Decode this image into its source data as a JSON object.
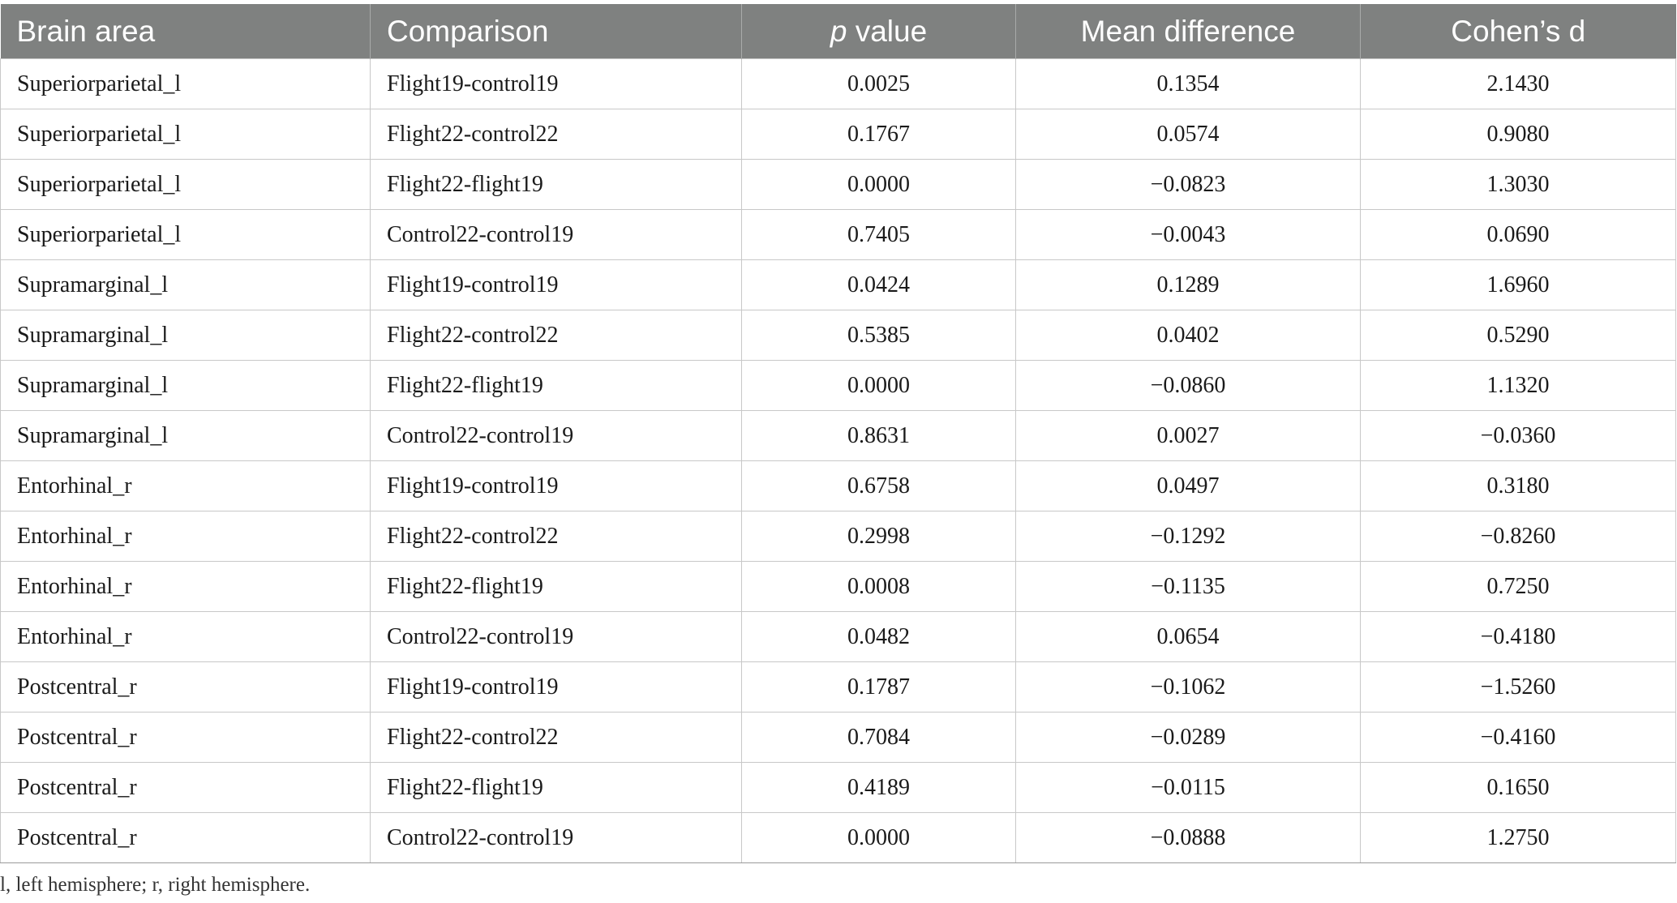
{
  "table": {
    "headers": {
      "brain_area": "Brain area",
      "comparison": "Comparison",
      "p_value_italic": "p",
      "p_value_rest": " value",
      "mean_difference": "Mean difference",
      "cohens_d": "Cohen’s d"
    },
    "rows": [
      {
        "brain_area": "Superiorparietal_l",
        "comparison": "Flight19-control19",
        "p_value": "0.0025",
        "mean_difference": "0.1354",
        "cohens_d": "2.1430"
      },
      {
        "brain_area": "Superiorparietal_l",
        "comparison": "Flight22-control22",
        "p_value": "0.1767",
        "mean_difference": "0.0574",
        "cohens_d": "0.9080"
      },
      {
        "brain_area": "Superiorparietal_l",
        "comparison": "Flight22-flight19",
        "p_value": "0.0000",
        "mean_difference": "−0.0823",
        "cohens_d": "1.3030"
      },
      {
        "brain_area": "Superiorparietal_l",
        "comparison": "Control22-control19",
        "p_value": "0.7405",
        "mean_difference": "−0.0043",
        "cohens_d": "0.0690"
      },
      {
        "brain_area": "Supramarginal_l",
        "comparison": "Flight19-control19",
        "p_value": "0.0424",
        "mean_difference": "0.1289",
        "cohens_d": "1.6960"
      },
      {
        "brain_area": "Supramarginal_l",
        "comparison": "Flight22-control22",
        "p_value": "0.5385",
        "mean_difference": "0.0402",
        "cohens_d": "0.5290"
      },
      {
        "brain_area": "Supramarginal_l",
        "comparison": "Flight22-flight19",
        "p_value": "0.0000",
        "mean_difference": "−0.0860",
        "cohens_d": "1.1320"
      },
      {
        "brain_area": "Supramarginal_l",
        "comparison": "Control22-control19",
        "p_value": "0.8631",
        "mean_difference": "0.0027",
        "cohens_d": "−0.0360"
      },
      {
        "brain_area": "Entorhinal_r",
        "comparison": "Flight19-control19",
        "p_value": "0.6758",
        "mean_difference": "0.0497",
        "cohens_d": "0.3180"
      },
      {
        "brain_area": "Entorhinal_r",
        "comparison": "Flight22-control22",
        "p_value": "0.2998",
        "mean_difference": "−0.1292",
        "cohens_d": "−0.8260"
      },
      {
        "brain_area": "Entorhinal_r",
        "comparison": "Flight22-flight19",
        "p_value": "0.0008",
        "mean_difference": "−0.1135",
        "cohens_d": "0.7250"
      },
      {
        "brain_area": "Entorhinal_r",
        "comparison": "Control22-control19",
        "p_value": "0.0482",
        "mean_difference": "0.0654",
        "cohens_d": "−0.4180"
      },
      {
        "brain_area": "Postcentral_r",
        "comparison": "Flight19-control19",
        "p_value": "0.1787",
        "mean_difference": "−0.1062",
        "cohens_d": "−1.5260"
      },
      {
        "brain_area": "Postcentral_r",
        "comparison": "Flight22-control22",
        "p_value": "0.7084",
        "mean_difference": "−0.0289",
        "cohens_d": "−0.4160"
      },
      {
        "brain_area": "Postcentral_r",
        "comparison": "Flight22-flight19",
        "p_value": "0.4189",
        "mean_difference": "−0.0115",
        "cohens_d": "0.1650"
      },
      {
        "brain_area": "Postcentral_r",
        "comparison": "Control22-control19",
        "p_value": "0.0000",
        "mean_difference": "−0.0888",
        "cohens_d": "1.2750"
      }
    ]
  },
  "footnote": "l, left hemisphere; r, right hemisphere."
}
